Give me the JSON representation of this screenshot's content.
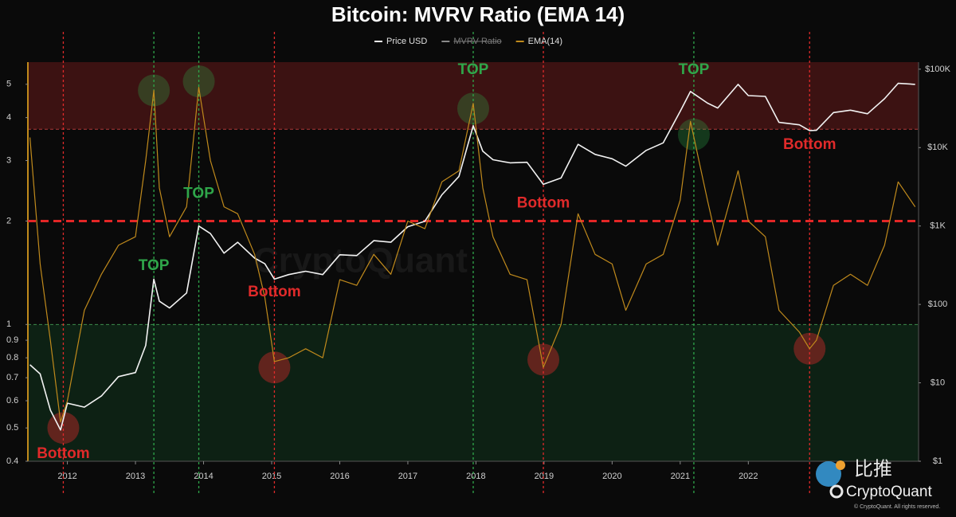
{
  "chart_data": {
    "type": "line",
    "title": "Bitcoin: MVRV Ratio (EMA 14)",
    "watermark": "CryptoQuant",
    "x": [
      2011.45,
      2011.6,
      2011.75,
      2011.9,
      2012.0,
      2012.25,
      2012.5,
      2012.75,
      2013.0,
      2013.15,
      2013.27,
      2013.35,
      2013.5,
      2013.75,
      2013.93,
      2014.1,
      2014.3,
      2014.5,
      2014.75,
      2014.9,
      2015.04,
      2015.25,
      2015.5,
      2015.75,
      2016.0,
      2016.25,
      2016.5,
      2016.75,
      2017.0,
      2017.25,
      2017.5,
      2017.75,
      2017.96,
      2018.1,
      2018.25,
      2018.5,
      2018.75,
      2018.99,
      2019.25,
      2019.5,
      2019.75,
      2020.0,
      2020.2,
      2020.5,
      2020.75,
      2021.0,
      2021.15,
      2021.4,
      2021.55,
      2021.85,
      2022.0,
      2022.25,
      2022.45,
      2022.75,
      2022.9,
      2023.0,
      2023.25,
      2023.5,
      2023.75,
      2024.0,
      2024.2,
      2024.45
    ],
    "series": [
      {
        "name": "Price USD",
        "color": "#f2f2f2",
        "axis": "y2",
        "visible": true,
        "values": [
          17,
          13,
          4.5,
          2.5,
          5.5,
          4.9,
          6.8,
          12,
          13.5,
          30,
          210,
          110,
          90,
          140,
          1000,
          800,
          450,
          620,
          390,
          330,
          210,
          240,
          265,
          240,
          430,
          420,
          650,
          620,
          980,
          1150,
          2500,
          4300,
          19000,
          9000,
          7000,
          6400,
          6500,
          3400,
          4100,
          11000,
          8200,
          7200,
          5800,
          9200,
          11500,
          29000,
          52000,
          37000,
          32000,
          64000,
          46000,
          45000,
          21000,
          19500,
          16500,
          16600,
          28000,
          30000,
          27000,
          42000,
          66000,
          64000
        ]
      },
      {
        "name": "MVRV Ratio",
        "color": "#8a8a8a",
        "visible": false
      },
      {
        "name": "EMA(14)",
        "color": "#c08a1c",
        "axis": "y",
        "visible": true,
        "values": [
          3.5,
          1.5,
          0.9,
          0.52,
          0.6,
          1.1,
          1.4,
          1.7,
          1.8,
          3.0,
          4.8,
          2.5,
          1.8,
          2.2,
          4.9,
          3.0,
          2.2,
          2.1,
          1.6,
          1.2,
          0.78,
          0.8,
          0.85,
          0.8,
          1.35,
          1.3,
          1.6,
          1.4,
          2.0,
          1.9,
          2.6,
          2.8,
          4.4,
          2.5,
          1.8,
          1.4,
          1.35,
          0.75,
          1.0,
          2.1,
          1.6,
          1.5,
          1.1,
          1.5,
          1.6,
          2.3,
          3.9,
          2.3,
          1.7,
          2.8,
          2.0,
          1.8,
          1.1,
          0.95,
          0.85,
          0.9,
          1.3,
          1.4,
          1.3,
          1.7,
          2.6,
          2.2
        ]
      }
    ],
    "xlim": [
      2011.42,
      2024.5
    ],
    "xticks": [
      2012,
      2013,
      2014,
      2015,
      2016,
      2017,
      2018,
      2019,
      2020,
      2021,
      2022
    ],
    "ylog": true,
    "ylim": [
      0.4,
      5.8
    ],
    "yticks": [
      0.4,
      0.5,
      0.6,
      0.7,
      0.8,
      0.9,
      1,
      2,
      3,
      4,
      5
    ],
    "y2log": true,
    "y2lim": [
      1,
      123000
    ],
    "y2ticks": [
      {
        "value": 1,
        "label": "$1"
      },
      {
        "value": 10,
        "label": "$10"
      },
      {
        "value": 100,
        "label": "$100"
      },
      {
        "value": 1000,
        "label": "$1K"
      },
      {
        "value": 10000,
        "label": "$10K"
      },
      {
        "value": 100000,
        "label": "$100K"
      }
    ],
    "zones": [
      {
        "from": 3.7,
        "to": 5.8,
        "color": "#7a1c1c",
        "line_color": "#b03a3a"
      },
      {
        "from": 0.4,
        "to": 1,
        "color": "#123d22",
        "line_color": "#3c8c4c"
      }
    ],
    "reference_line": {
      "y": 2,
      "color": "#e32626"
    },
    "events": [
      {
        "label": "Bottom",
        "kind": "bottom",
        "x": 2011.94,
        "label_y": 0.42,
        "circle_y": 0.5,
        "color": "#e02a2a"
      },
      {
        "label": "TOP",
        "kind": "top",
        "x": 2013.27,
        "label_y": 1.48,
        "circle_y": 4.8,
        "color": "#2fa64a"
      },
      {
        "label": "TOP",
        "kind": "top",
        "x": 2013.93,
        "label_y": 2.4,
        "circle_y": 5.1,
        "color": "#2fa64a"
      },
      {
        "label": "Bottom",
        "kind": "bottom",
        "x": 2015.04,
        "label_y": 1.24,
        "circle_y": 0.75,
        "color": "#e02a2a"
      },
      {
        "label": "TOP",
        "kind": "top",
        "x": 2017.96,
        "label_y": 5.5,
        "circle_y": 4.25,
        "color": "#2fa64a"
      },
      {
        "label": "Bottom",
        "kind": "bottom",
        "x": 2018.99,
        "label_y": 2.25,
        "circle_y": 0.79,
        "color": "#e02a2a"
      },
      {
        "label": "TOP",
        "kind": "top",
        "x": 2021.2,
        "label_y": 5.5,
        "circle_y": 3.57,
        "color": "#2fa64a"
      },
      {
        "label": "Bottom",
        "kind": "bottom",
        "x": 2022.9,
        "label_y": 3.33,
        "circle_y": 0.85,
        "color": "#e02a2a"
      }
    ]
  },
  "branding": {
    "bitpush": "比推",
    "logo": "CryptoQuant",
    "copyright": "© CryptoQuant. All rights reserved."
  }
}
